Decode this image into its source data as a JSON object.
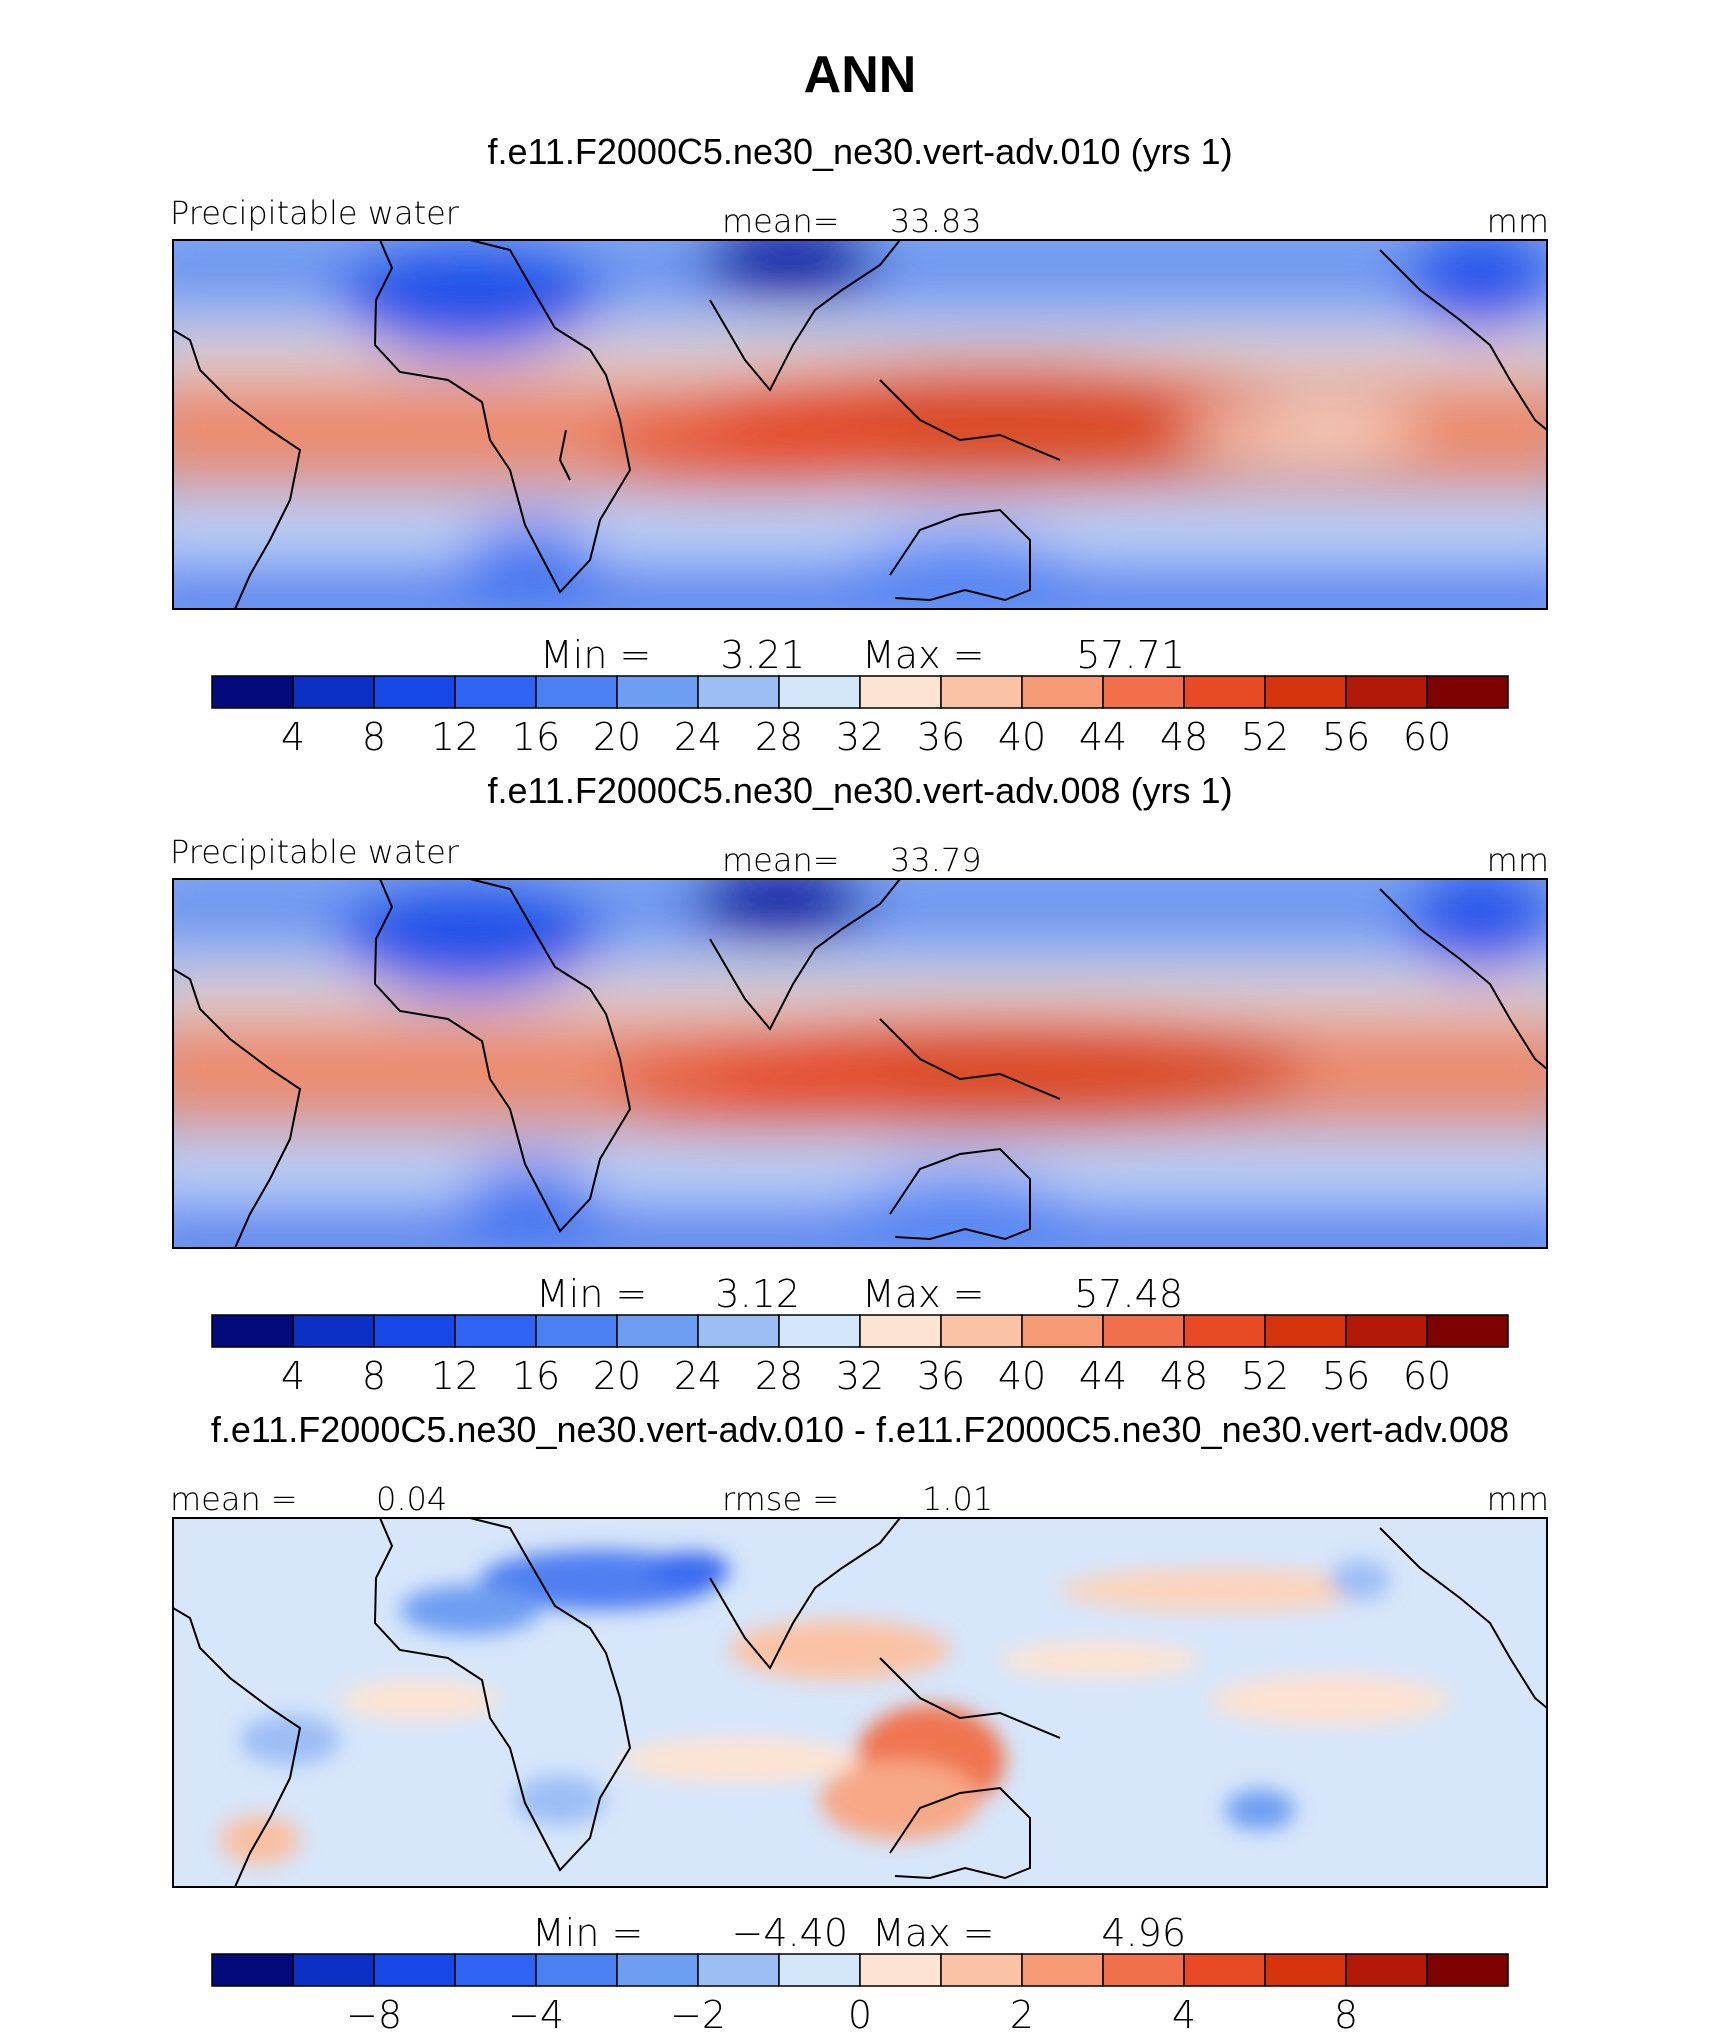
{
  "figure": {
    "title": "ANN",
    "variable": "Precipitable water",
    "units": "mm"
  },
  "colors": {
    "palette": [
      "#030a7c",
      "#0c2fc4",
      "#1847e8",
      "#2f63f4",
      "#4b80f2",
      "#6e9ef1",
      "#9dbef5",
      "#d4e6f9",
      "#fde4d2",
      "#fbc3a6",
      "#f79a76",
      "#f26f4b",
      "#e84a26",
      "#d5330c",
      "#b21a07",
      "#7f0202"
    ],
    "frame": "#000000",
    "text": "#000000"
  },
  "chart_data": [
    {
      "type": "heatmap",
      "panel": "control",
      "title": "f.e11.F2000C5.ne30_ne30.vert-adv.010 (yrs 1)",
      "left_label": "Precipitable water",
      "center_label": "mean=",
      "center_value": "33.83",
      "right_label": "mm",
      "stats": {
        "min_label": "Min =",
        "min": "3.21",
        "max_label": "Max =",
        "max": "57.71"
      },
      "levels": [
        4,
        8,
        12,
        16,
        20,
        24,
        28,
        32,
        36,
        40,
        44,
        48,
        52,
        56,
        60
      ],
      "colorbar_ticks": [
        "4",
        "8",
        "12",
        "16",
        "20",
        "24",
        "28",
        "32",
        "36",
        "40",
        "44",
        "48",
        "52",
        "56",
        "60"
      ]
    },
    {
      "type": "heatmap",
      "panel": "test",
      "title": "f.e11.F2000C5.ne30_ne30.vert-adv.008 (yrs 1)",
      "left_label": "Precipitable water",
      "center_label": "mean=",
      "center_value": "33.79",
      "right_label": "mm",
      "stats": {
        "min_label": "Min =",
        "min": "3.12",
        "max_label": "Max =",
        "max": "57.48"
      },
      "levels": [
        4,
        8,
        12,
        16,
        20,
        24,
        28,
        32,
        36,
        40,
        44,
        48,
        52,
        56,
        60
      ],
      "colorbar_ticks": [
        "4",
        "8",
        "12",
        "16",
        "20",
        "24",
        "28",
        "32",
        "36",
        "40",
        "44",
        "48",
        "52",
        "56",
        "60"
      ]
    },
    {
      "type": "heatmap",
      "panel": "difference",
      "title": "f.e11.F2000C5.ne30_ne30.vert-adv.010 - f.e11.F2000C5.ne30_ne30.vert-adv.008",
      "left_label": "mean =",
      "left_value": "0.04",
      "center_label": "rmse =",
      "center_value": "1.01",
      "right_label": "mm",
      "stats": {
        "min_label": "Min =",
        "min": "−4.40",
        "max_label": "Max =",
        "max": "4.96"
      },
      "levels": [
        -10,
        -8,
        -6,
        -4,
        -3,
        -2,
        -1,
        0,
        1,
        2,
        3,
        4,
        6,
        8,
        10
      ],
      "colorbar_ticks": [
        "−8",
        "−4",
        "−2",
        "0",
        "2",
        "4",
        "8"
      ],
      "colorbar_tick_levels": [
        -8,
        -4,
        -2,
        0,
        2,
        4,
        8
      ]
    }
  ]
}
